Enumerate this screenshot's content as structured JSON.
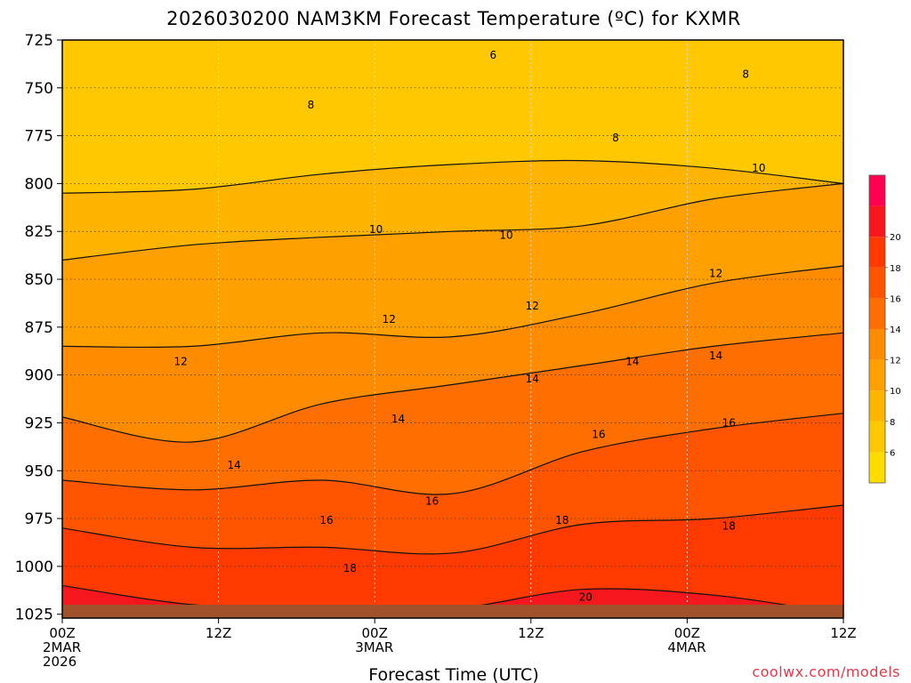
{
  "chart_data": {
    "type": "heatmap",
    "title": "2026030200 NAM3KM Forecast Temperature (ºC) for KXMR",
    "xlabel": "Forecast Time (UTC)",
    "credit": "coolwx.com/models",
    "x_hours": [
      0,
      12,
      24,
      36,
      48,
      60
    ],
    "x_ticks": [
      {
        "hour": 0,
        "lines": [
          "00Z",
          "2MAR",
          "2026"
        ]
      },
      {
        "hour": 12,
        "lines": [
          "12Z"
        ]
      },
      {
        "hour": 24,
        "lines": [
          "00Z",
          "3MAR"
        ]
      },
      {
        "hour": 36,
        "lines": [
          "12Z"
        ]
      },
      {
        "hour": 48,
        "lines": [
          "00Z",
          "4MAR"
        ]
      },
      {
        "hour": 60,
        "lines": [
          "12Z"
        ]
      }
    ],
    "y_ticks": [
      725,
      750,
      775,
      800,
      825,
      850,
      875,
      900,
      925,
      950,
      975,
      1000,
      1025
    ],
    "y_range": [
      725,
      1027
    ],
    "surface_pressure_hpa": 1020,
    "colorbar": {
      "levels": [
        4,
        6,
        8,
        10,
        12,
        14,
        16,
        18,
        20,
        22
      ],
      "labels": [
        "6",
        "8",
        "10",
        "12",
        "14",
        "16",
        "18",
        "20"
      ],
      "colors": [
        "#ffdc00",
        "#ffc800",
        "#ffb400",
        "#ffa000",
        "#ff8c00",
        "#ff6e00",
        "#ff5500",
        "#ff3a00",
        "#f6161e",
        "#ff0050"
      ]
    },
    "isotherms": [
      {
        "value": 8,
        "pressures": [
          805,
          803,
          795,
          790,
          788,
          792,
          800
        ]
      },
      {
        "value": 10,
        "pressures": [
          840,
          832,
          828,
          825,
          822,
          808,
          800
        ]
      },
      {
        "value": 12,
        "pressures": [
          885,
          885,
          878,
          880,
          868,
          852,
          843
        ]
      },
      {
        "value": 14,
        "pressures": [
          922,
          935,
          915,
          905,
          895,
          885,
          878
        ]
      },
      {
        "value": 16,
        "pressures": [
          955,
          960,
          955,
          962,
          940,
          928,
          920
        ]
      },
      {
        "value": 18,
        "pressures": [
          980,
          990,
          990,
          993,
          978,
          975,
          968
        ]
      },
      {
        "value": 20,
        "pressures": [
          1010,
          1020,
          1022,
          1022,
          1012,
          1015,
          1025
        ]
      }
    ],
    "contour_labels": [
      {
        "text": "6",
        "hour": 33.1,
        "pressure": 733
      },
      {
        "text": "8",
        "hour": 19.1,
        "pressure": 759
      },
      {
        "text": "8",
        "hour": 42.5,
        "pressure": 776
      },
      {
        "text": "8",
        "hour": 52.5,
        "pressure": 743
      },
      {
        "text": "10",
        "hour": 24.1,
        "pressure": 824
      },
      {
        "text": "10",
        "hour": 34.1,
        "pressure": 827
      },
      {
        "text": "10",
        "hour": 53.5,
        "pressure": 792
      },
      {
        "text": "12",
        "hour": 9.1,
        "pressure": 893
      },
      {
        "text": "12",
        "hour": 25.1,
        "pressure": 871
      },
      {
        "text": "12",
        "hour": 36.1,
        "pressure": 864
      },
      {
        "text": "12",
        "hour": 50.2,
        "pressure": 847
      },
      {
        "text": "14",
        "hour": 13.2,
        "pressure": 947
      },
      {
        "text": "14",
        "hour": 25.8,
        "pressure": 923
      },
      {
        "text": "14",
        "hour": 36.1,
        "pressure": 902
      },
      {
        "text": "14",
        "hour": 43.8,
        "pressure": 893
      },
      {
        "text": "14",
        "hour": 50.2,
        "pressure": 890
      },
      {
        "text": "16",
        "hour": 28.4,
        "pressure": 966
      },
      {
        "text": "16",
        "hour": 20.3,
        "pressure": 976
      },
      {
        "text": "16",
        "hour": 41.2,
        "pressure": 931
      },
      {
        "text": "16",
        "hour": 51.2,
        "pressure": 925
      },
      {
        "text": "18",
        "hour": 22.1,
        "pressure": 1001
      },
      {
        "text": "18",
        "hour": 38.4,
        "pressure": 976
      },
      {
        "text": "18",
        "hour": 51.2,
        "pressure": 979
      },
      {
        "text": "20",
        "hour": 40.2,
        "pressure": 1016
      }
    ]
  }
}
